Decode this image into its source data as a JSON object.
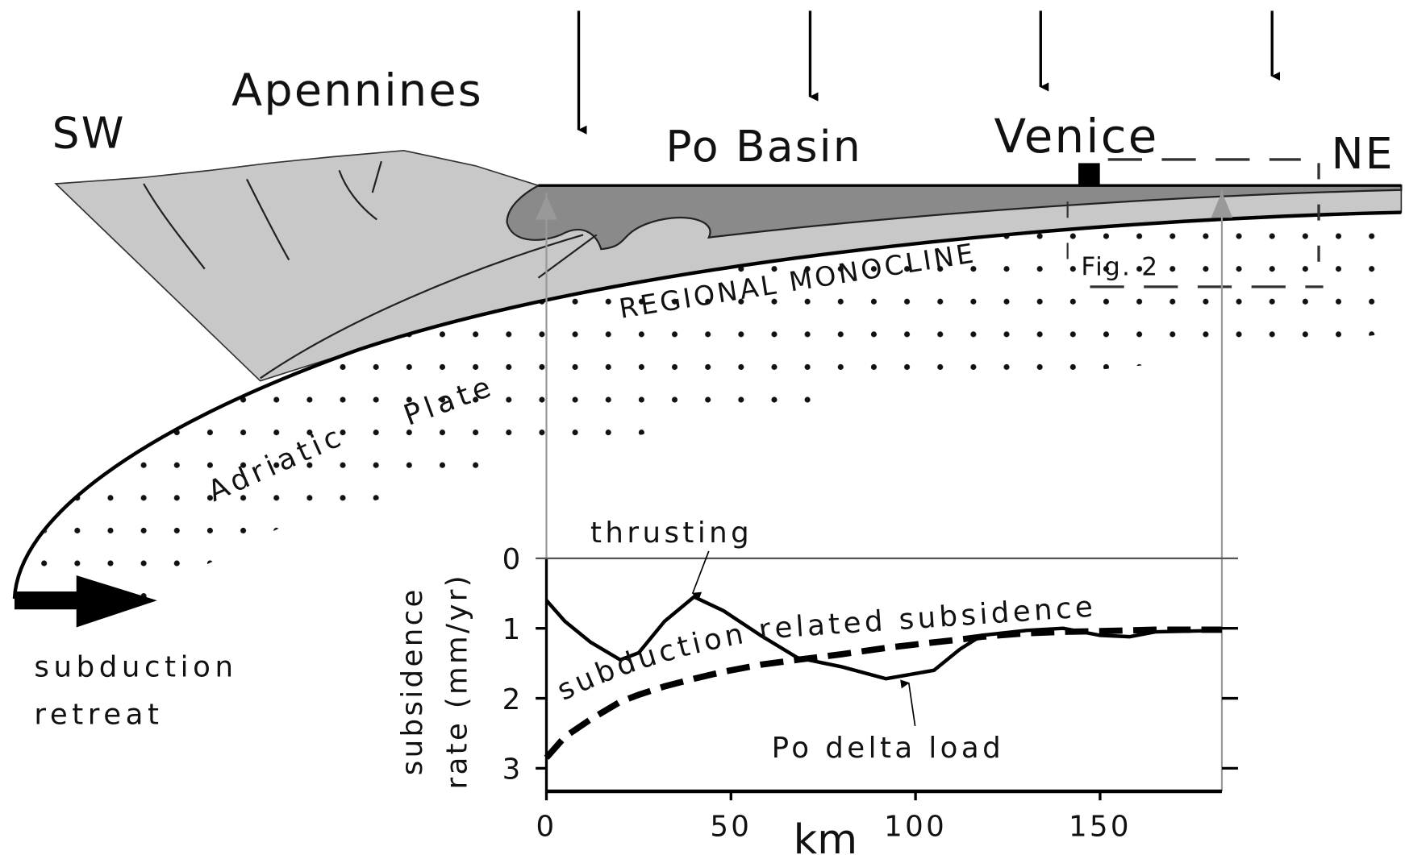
{
  "labels": {
    "sw": "SW",
    "ne": "NE",
    "apennines": "Apennines",
    "po_basin": "Po Basin",
    "venice": "Venice",
    "regional_monocline": "REGIONAL MONOCLINE",
    "fig": "Fig. 2",
    "adriatic": "Adriatic",
    "plate": "Plate",
    "subduction": "subduction",
    "retreat": "retreat"
  },
  "chart_data": {
    "type": "line",
    "xlabel": "km",
    "ylabel": [
      "subsidence",
      "rate (mm/yr)"
    ],
    "x": [
      0,
      5,
      12,
      20,
      25,
      32,
      40,
      48,
      58,
      68,
      80,
      92,
      105,
      112,
      118,
      130,
      140,
      150,
      158,
      165,
      183
    ],
    "series": [
      {
        "color": "#000000",
        "dashed": false,
        "values": [
          0.6,
          0.9,
          1.2,
          1.45,
          1.35,
          0.9,
          0.55,
          0.75,
          1.1,
          1.42,
          1.55,
          1.72,
          1.6,
          1.3,
          1.1,
          1.03,
          1.0,
          1.1,
          1.12,
          1.05,
          1.03
        ]
      },
      {
        "name": "subduction related subsidence",
        "color": "#000000",
        "dashed": true,
        "values": [
          2.85,
          2.55,
          2.3,
          2.05,
          1.95,
          1.83,
          1.72,
          1.62,
          1.52,
          1.45,
          1.37,
          1.28,
          1.2,
          1.16,
          1.12,
          1.07,
          1.05,
          1.04,
          1.03,
          1.02,
          1.02
        ]
      }
    ],
    "annotations": [
      "thrusting",
      "Po delta load"
    ],
    "xlim": [
      0,
      183
    ],
    "ylim": [
      3.33,
      0
    ],
    "xticks": [
      0,
      50,
      100,
      150
    ],
    "yticks": [
      0,
      1,
      2,
      3
    ],
    "grid": false
  }
}
